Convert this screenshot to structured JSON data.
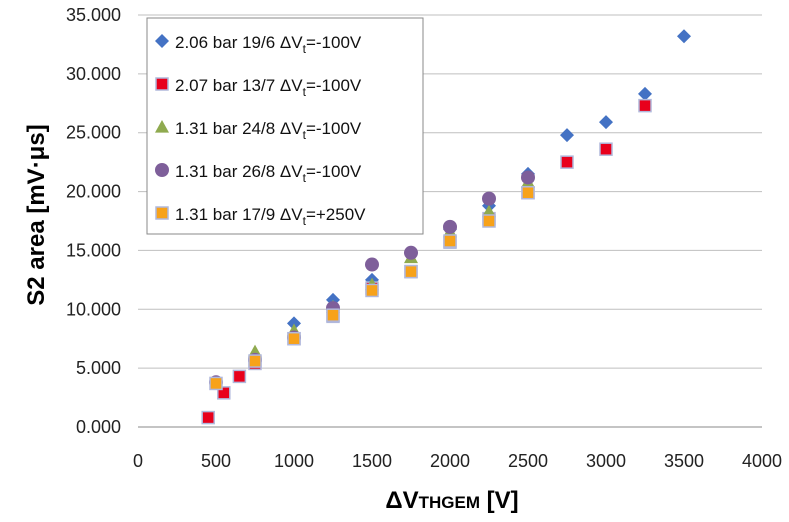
{
  "chart_data": {
    "type": "scatter",
    "title": "",
    "xlabel": {
      "prefix": "ΔV",
      "sub": "THGEM",
      "suffix": " [V]"
    },
    "ylabel": "S2 area [mV·μs]",
    "xlim": [
      0,
      4000
    ],
    "ylim": [
      0,
      35000
    ],
    "x_ticks": [
      0,
      500,
      1000,
      1500,
      2000,
      2500,
      3000,
      3500,
      4000
    ],
    "x_tick_labels": [
      "0",
      "500",
      "1000",
      "1500",
      "2000",
      "2500",
      "3000",
      "3500",
      "4000"
    ],
    "y_ticks": [
      0,
      5000,
      10000,
      15000,
      20000,
      25000,
      30000,
      35000
    ],
    "y_tick_labels": [
      "0.000",
      "5.000",
      "10.000",
      "15.000",
      "20.000",
      "25.000",
      "30.000",
      "35.000"
    ],
    "grid": "horizontal",
    "legend_position": "top-left",
    "series": [
      {
        "name": "2.06 bar 19/6 ΔVt=-100V",
        "legend": {
          "pre": "2.06 bar 19/6 ΔV",
          "sub": "t",
          "post": "=-100V"
        },
        "marker": "diamond",
        "color": "#4472C4",
        "points": [
          [
            750,
            5800
          ],
          [
            1000,
            8800
          ],
          [
            1250,
            10800
          ],
          [
            1500,
            12500
          ],
          [
            1750,
            14800
          ],
          [
            2000,
            16800
          ],
          [
            2250,
            18800
          ],
          [
            2500,
            21500
          ],
          [
            2750,
            24800
          ],
          [
            3000,
            25900
          ],
          [
            3250,
            28300
          ],
          [
            3500,
            33200
          ]
        ]
      },
      {
        "name": "2.07 bar 13/7 ΔVt=-100V",
        "legend": {
          "pre": "2.07 bar 13/7 ΔV",
          "sub": "t",
          "post": "=-100V"
        },
        "marker": "square",
        "color": "#E8001C",
        "points": [
          [
            450,
            800
          ],
          [
            550,
            2900
          ],
          [
            650,
            4300
          ],
          [
            750,
            5400
          ],
          [
            1000,
            7500
          ],
          [
            1250,
            9400
          ],
          [
            1500,
            11800
          ],
          [
            1750,
            13200
          ],
          [
            2000,
            15700
          ],
          [
            2250,
            17700
          ],
          [
            2500,
            19900
          ],
          [
            2750,
            22500
          ],
          [
            3000,
            23600
          ],
          [
            3250,
            27300
          ]
        ]
      },
      {
        "name": "1.31 bar 24/8 ΔVt=-100V",
        "legend": {
          "pre": "1.31 bar 24/8 ΔV",
          "sub": "t",
          "post": "=-100V"
        },
        "marker": "triangle",
        "color": "#8FAA4F",
        "points": [
          [
            750,
            6400
          ],
          [
            1000,
            8200
          ],
          [
            1250,
            10200
          ],
          [
            1500,
            12100
          ],
          [
            1750,
            14400
          ],
          [
            2000,
            16600
          ],
          [
            2250,
            18300
          ],
          [
            2500,
            20800
          ]
        ]
      },
      {
        "name": "1.31 bar 26/8 ΔVt=-100V",
        "legend": {
          "pre": "1.31 bar 26/8 ΔV",
          "sub": "t",
          "post": "=-100V"
        },
        "marker": "circle",
        "color": "#7E5F9A",
        "points": [
          [
            500,
            3800
          ],
          [
            750,
            5700
          ],
          [
            1000,
            7600
          ],
          [
            1250,
            10100
          ],
          [
            1500,
            13800
          ],
          [
            1750,
            14800
          ],
          [
            2000,
            17000
          ],
          [
            2250,
            19400
          ],
          [
            2500,
            21200
          ]
        ]
      },
      {
        "name": "1.31 bar 17/9 ΔVt=+250V",
        "legend": {
          "pre": "1.31 bar 17/9 ΔV",
          "sub": "t",
          "post": "=+250V"
        },
        "marker": "square",
        "color": "#F7A21A",
        "points": [
          [
            500,
            3700
          ],
          [
            750,
            5600
          ],
          [
            1000,
            7500
          ],
          [
            1250,
            9500
          ],
          [
            1500,
            11600
          ],
          [
            1750,
            13200
          ],
          [
            2000,
            15800
          ],
          [
            2250,
            17500
          ],
          [
            2500,
            19900
          ]
        ]
      }
    ]
  }
}
